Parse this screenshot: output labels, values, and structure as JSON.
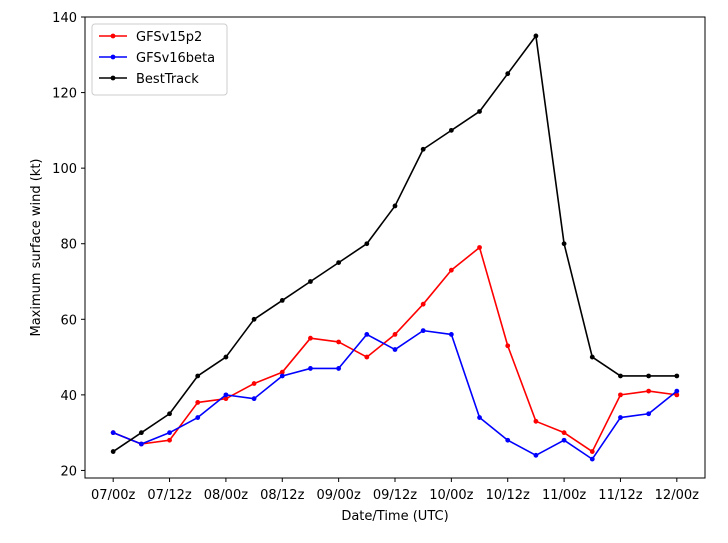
{
  "chart_data": {
    "type": "line",
    "title": "",
    "xlabel": "Date/Time (UTC)",
    "ylabel": "Maximum surface wind (kt)",
    "ylim": [
      18,
      140
    ],
    "yticks": [
      20,
      40,
      60,
      80,
      100,
      120,
      140
    ],
    "x": [
      0,
      1,
      2,
      3,
      4,
      5,
      6,
      7,
      8,
      9,
      10,
      11,
      12,
      13,
      14,
      15,
      16,
      17,
      18,
      19,
      20
    ],
    "xticks": [
      {
        "pos": 0,
        "label": "07/00z"
      },
      {
        "pos": 2,
        "label": "07/12z"
      },
      {
        "pos": 4,
        "label": "08/00z"
      },
      {
        "pos": 6,
        "label": "08/12z"
      },
      {
        "pos": 8,
        "label": "09/00z"
      },
      {
        "pos": 10,
        "label": "09/12z"
      },
      {
        "pos": 12,
        "label": "10/00z"
      },
      {
        "pos": 14,
        "label": "10/12z"
      },
      {
        "pos": 16,
        "label": "11/00z"
      },
      {
        "pos": 18,
        "label": "11/12z"
      },
      {
        "pos": 20,
        "label": "12/00z"
      }
    ],
    "legend_position": "top-left",
    "series": [
      {
        "name": "GFSv15p2",
        "color": "#ff0000",
        "values": [
          30,
          27,
          28,
          38,
          39,
          43,
          46,
          55,
          54,
          50,
          56,
          64,
          73,
          79,
          53,
          33,
          30,
          25,
          40,
          41,
          40
        ]
      },
      {
        "name": "GFSv16beta",
        "color": "#0000ff",
        "values": [
          30,
          27,
          30,
          34,
          40,
          39,
          45,
          47,
          47,
          56,
          52,
          57,
          56,
          34,
          28,
          24,
          28,
          23,
          34,
          35,
          41
        ]
      },
      {
        "name": "BestTrack",
        "color": "#000000",
        "values": [
          25,
          30,
          35,
          45,
          50,
          60,
          65,
          70,
          75,
          80,
          90,
          105,
          110,
          115,
          125,
          135,
          80,
          50,
          45,
          45,
          45
        ]
      }
    ]
  }
}
